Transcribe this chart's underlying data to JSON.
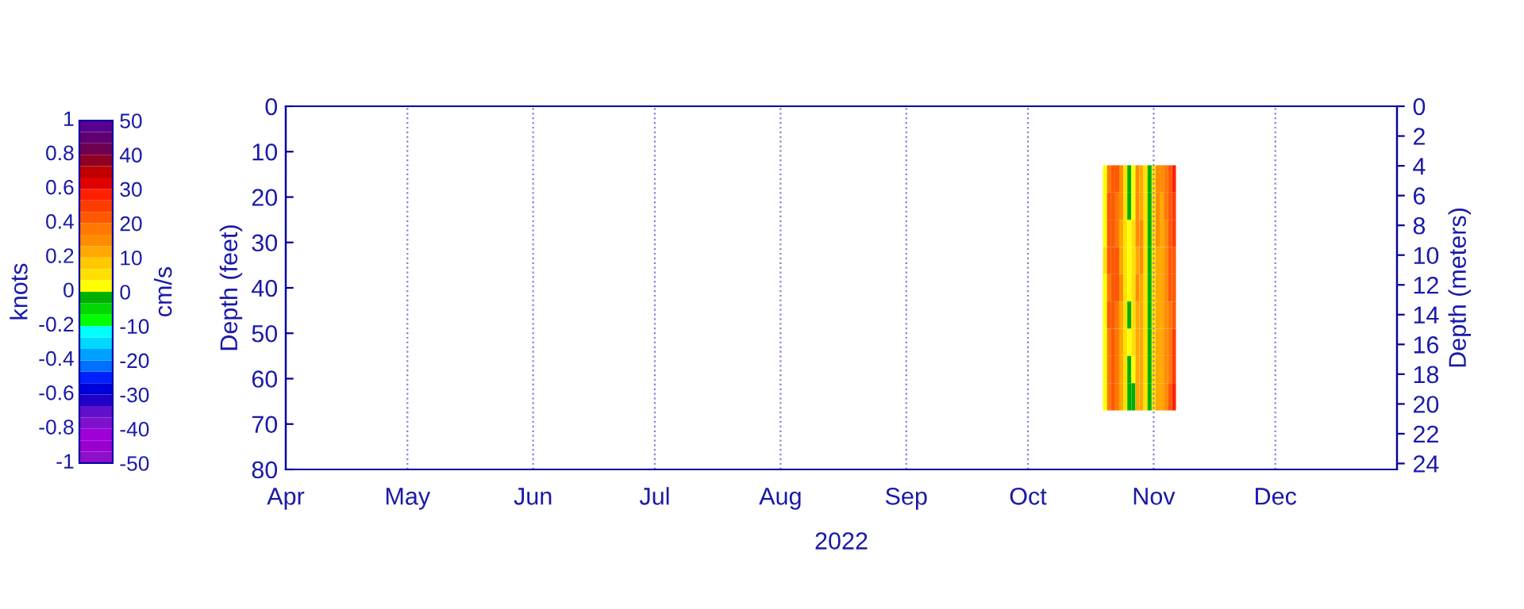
{
  "chart_data": {
    "type": "heatmap",
    "xlabel": "2022",
    "ylabel": "Depth (feet)",
    "y2label": "Depth (meters)",
    "clabel": "cm/s",
    "annotations": [
      "knots",
      "1",
      "0.8",
      "0.6",
      "0.4",
      "0.2",
      "0",
      "-0.2",
      "-0.4",
      "-0.6",
      "-0.8",
      "-1"
    ],
    "x": [
      "2022-10-20",
      "2022-10-21",
      "2022-10-22",
      "2022-10-23",
      "2022-10-24",
      "2022-10-25",
      "2022-10-26",
      "2022-10-27",
      "2022-10-28",
      "2022-10-29",
      "2022-10-30",
      "2022-10-31",
      "2022-11-01",
      "2022-11-02",
      "2022-11-03",
      "2022-11-04",
      "2022-11-05",
      "2022-11-06"
    ],
    "y": [
      16,
      22,
      28,
      34,
      40,
      46,
      52,
      58,
      64
    ],
    "cells": [
      [
        3,
        18,
        22,
        20,
        15,
        5,
        -3,
        3,
        15,
        12,
        5,
        -3,
        5,
        15,
        15,
        18,
        22,
        28
      ],
      [
        3,
        20,
        22,
        18,
        15,
        5,
        -3,
        3,
        15,
        12,
        5,
        -3,
        5,
        15,
        12,
        18,
        20,
        25
      ],
      [
        3,
        20,
        20,
        18,
        12,
        5,
        3,
        5,
        15,
        15,
        5,
        -3,
        5,
        15,
        12,
        15,
        20,
        25
      ],
      [
        5,
        20,
        22,
        20,
        12,
        5,
        3,
        5,
        12,
        15,
        5,
        -3,
        5,
        12,
        12,
        15,
        20,
        22
      ],
      [
        3,
        18,
        22,
        20,
        15,
        5,
        3,
        5,
        15,
        12,
        5,
        -3,
        5,
        12,
        10,
        15,
        20,
        22
      ],
      [
        3,
        20,
        22,
        18,
        12,
        5,
        -3,
        5,
        12,
        12,
        5,
        -3,
        5,
        12,
        10,
        15,
        18,
        22
      ],
      [
        3,
        18,
        20,
        18,
        12,
        5,
        3,
        5,
        12,
        12,
        5,
        -3,
        5,
        12,
        12,
        15,
        18,
        25
      ],
      [
        3,
        18,
        20,
        18,
        12,
        5,
        -3,
        3,
        12,
        12,
        5,
        -3,
        5,
        12,
        12,
        15,
        18,
        25
      ],
      [
        3,
        18,
        20,
        18,
        12,
        5,
        -3,
        -3,
        12,
        12,
        5,
        -3,
        5,
        12,
        12,
        15,
        20,
        28
      ]
    ],
    "xlim": [
      "2022-04-01",
      "2022-12-31"
    ],
    "xticks": [
      {
        "value": "2022-04-01",
        "label": "Apr"
      },
      {
        "value": "2022-05-01",
        "label": "May"
      },
      {
        "value": "2022-06-01",
        "label": "Jun"
      },
      {
        "value": "2022-07-01",
        "label": "Jul"
      },
      {
        "value": "2022-08-01",
        "label": "Aug"
      },
      {
        "value": "2022-09-01",
        "label": "Sep"
      },
      {
        "value": "2022-10-01",
        "label": "Oct"
      },
      {
        "value": "2022-11-01",
        "label": "Nov"
      },
      {
        "value": "2022-12-01",
        "label": "Dec"
      }
    ],
    "ylim": [
      80,
      0
    ],
    "yticks": [
      0,
      10,
      20,
      30,
      40,
      50,
      60,
      70,
      80
    ],
    "y2lim": [
      24.4,
      0
    ],
    "y2ticks": [
      0,
      2,
      4,
      6,
      8,
      10,
      12,
      14,
      16,
      18,
      20,
      22,
      24
    ],
    "clim": [
      -50,
      50
    ],
    "cticks": [
      -50,
      -40,
      -30,
      -20,
      -10,
      0,
      10,
      20,
      30,
      40,
      50
    ],
    "grid": "x",
    "line_style": "dotted"
  }
}
